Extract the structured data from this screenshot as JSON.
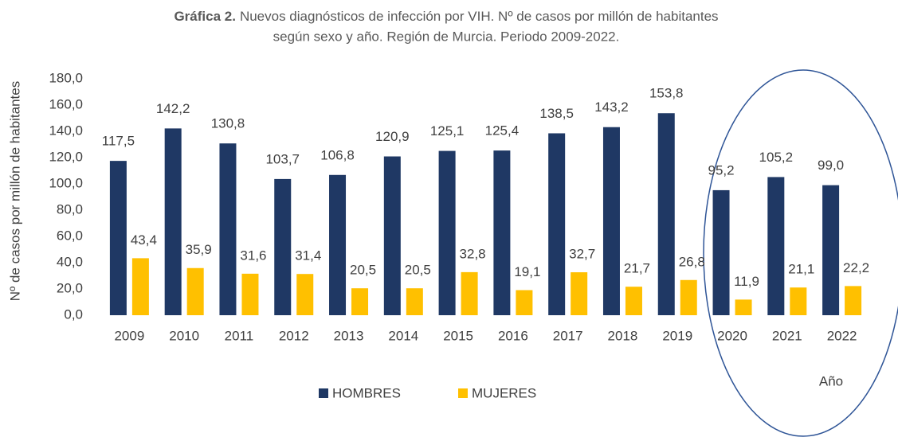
{
  "chart_data": {
    "type": "bar",
    "title_prefix": "Gráfica 2.",
    "title": [
      "Nuevos diagnósticos de infección por VIH. Nº de casos por millón de habitantes",
      "según sexo y año. Región de Murcia. Periodo 2009-2022."
    ],
    "y_label": "Nº de casos por millón de habitantes",
    "x_label": "Año",
    "categories": [
      "2009",
      "2010",
      "2011",
      "2012",
      "2013",
      "2014",
      "2015",
      "2016",
      "2017",
      "2018",
      "2019",
      "2020",
      "2021",
      "2022"
    ],
    "series": [
      {
        "name": "HOMBRES",
        "color": "#1f3864",
        "values": [
          117.5,
          142.2,
          130.8,
          103.7,
          106.8,
          120.9,
          125.1,
          125.4,
          138.5,
          143.2,
          153.8,
          95.2,
          105.2,
          99.0
        ],
        "value_labels": [
          "117,5",
          "142,2",
          "130,8",
          "103,7",
          "106,8",
          "120,9",
          "125,1",
          "125,4",
          "138,5",
          "143,2",
          "153,8",
          "95,2",
          "105,2",
          "99,0"
        ]
      },
      {
        "name": "MUJERES",
        "color": "#ffc000",
        "values": [
          43.4,
          35.9,
          31.6,
          31.4,
          20.5,
          20.5,
          32.8,
          19.1,
          32.7,
          21.7,
          26.8,
          11.9,
          21.1,
          22.2
        ],
        "value_labels": [
          "43,4",
          "35,9",
          "31,6",
          "31,4",
          "20,5",
          "20,5",
          "32,8",
          "19,1",
          "32,7",
          "21,7",
          "26,8",
          "11,9",
          "21,1",
          "22,2"
        ]
      }
    ],
    "ylim": [
      0,
      180
    ],
    "yticks": [
      {
        "value": 0,
        "label": "0,0"
      },
      {
        "value": 20,
        "label": "20,0"
      },
      {
        "value": 40,
        "label": "40,0"
      },
      {
        "value": 60,
        "label": "60,0"
      },
      {
        "value": 80,
        "label": "80,0"
      },
      {
        "value": 100,
        "label": "100,0"
      },
      {
        "value": 120,
        "label": "120,0"
      },
      {
        "value": 140,
        "label": "140,0"
      },
      {
        "value": 160,
        "label": "160,0"
      },
      {
        "value": 180,
        "label": "180,0"
      }
    ],
    "legend": "bottom"
  }
}
